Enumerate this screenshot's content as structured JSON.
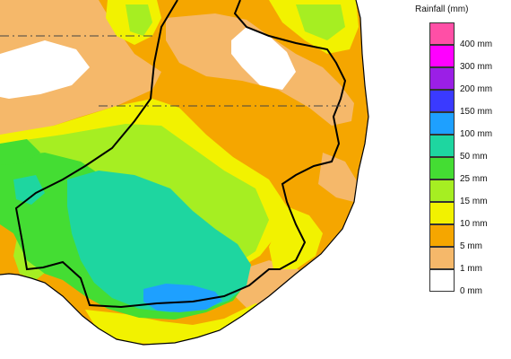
{
  "legend": {
    "title": "Rainfall (mm)",
    "bins": [
      {
        "label": "400 mm",
        "color": "#ff4fa6"
      },
      {
        "label": "300 mm",
        "color": "#ff00ff"
      },
      {
        "label": "200 mm",
        "color": "#9b1fe6"
      },
      {
        "label": "150 mm",
        "color": "#3a3aff"
      },
      {
        "label": "100 mm",
        "color": "#1ea0ff"
      },
      {
        "label": "50 mm",
        "color": "#1ed6a0"
      },
      {
        "label": "25 mm",
        "color": "#44dd33"
      },
      {
        "label": "15 mm",
        "color": "#a6ee22"
      },
      {
        "label": "10 mm",
        "color": "#f2f200"
      },
      {
        "label": "5 mm",
        "color": "#f5a600"
      },
      {
        "label": "1 mm",
        "color": "#f5b86a"
      },
      {
        "label": "0 mm",
        "color": "#ffffff"
      }
    ]
  },
  "colors": {
    "ocean": "#ffffff",
    "boundary": "#000000"
  }
}
